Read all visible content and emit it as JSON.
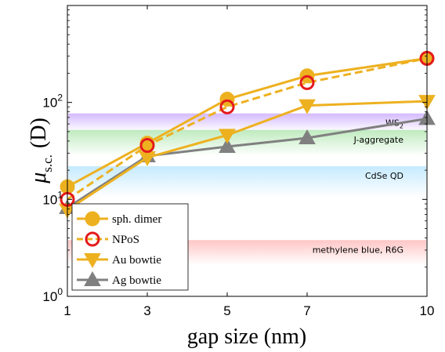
{
  "chart_data": {
    "type": "line",
    "xlabel": "gap size (nm)",
    "ylabel_main": "μ",
    "ylabel_sub": "s.c.",
    "ylabel_unit": "(D)",
    "x_scale": "linear",
    "y_scale": "log",
    "xlim": [
      1,
      10
    ],
    "ylim": [
      1,
      1000
    ],
    "x_ticks": [
      1,
      3,
      5,
      7,
      10
    ],
    "x_tick_labels": [
      "1",
      "3",
      "5",
      "7",
      "10"
    ],
    "y_ticks": [
      1,
      10,
      100
    ],
    "y_tick_base": "10",
    "y_tick_exponents": [
      "0",
      "1",
      "2"
    ],
    "grid": false,
    "legend_placement": "bottom-left",
    "x": [
      1,
      3,
      5,
      7,
      10
    ],
    "series": [
      {
        "name": "sph. dimer",
        "values": [
          13.5,
          38,
          108,
          188,
          285
        ],
        "color": "#EDB120",
        "marker": "circle",
        "line": "solid"
      },
      {
        "name": "NPoS",
        "values": [
          10,
          36,
          90,
          160,
          285
        ],
        "color": "#EDB120",
        "marker_edge": "#E41A1C",
        "marker": "open-circle",
        "line": "dashed"
      },
      {
        "name": "Au bowtie",
        "values": [
          7.8,
          27,
          46,
          93,
          103
        ],
        "color": "#EDB120",
        "marker": "triangle-down",
        "line": "solid"
      },
      {
        "name": "Ag bowtie",
        "values": [
          8.2,
          28,
          35,
          43,
          68
        ],
        "color": "#808080",
        "marker": "triangle-up",
        "line": "solid"
      }
    ],
    "bands": [
      {
        "label": "WS",
        "label_sub": "2",
        "y_low": 50,
        "y_high": 77,
        "color": "#a066ff"
      },
      {
        "label": "J-aggregate",
        "y_low": 28,
        "y_high": 52,
        "color": "#6fd26f"
      },
      {
        "label": "CdSe QD",
        "y_low": 10.5,
        "y_high": 22,
        "color": "#7fd0ff"
      },
      {
        "label": "methylene blue, R6G",
        "y_low": 2.1,
        "y_high": 3.8,
        "color": "#ff8080"
      }
    ]
  }
}
